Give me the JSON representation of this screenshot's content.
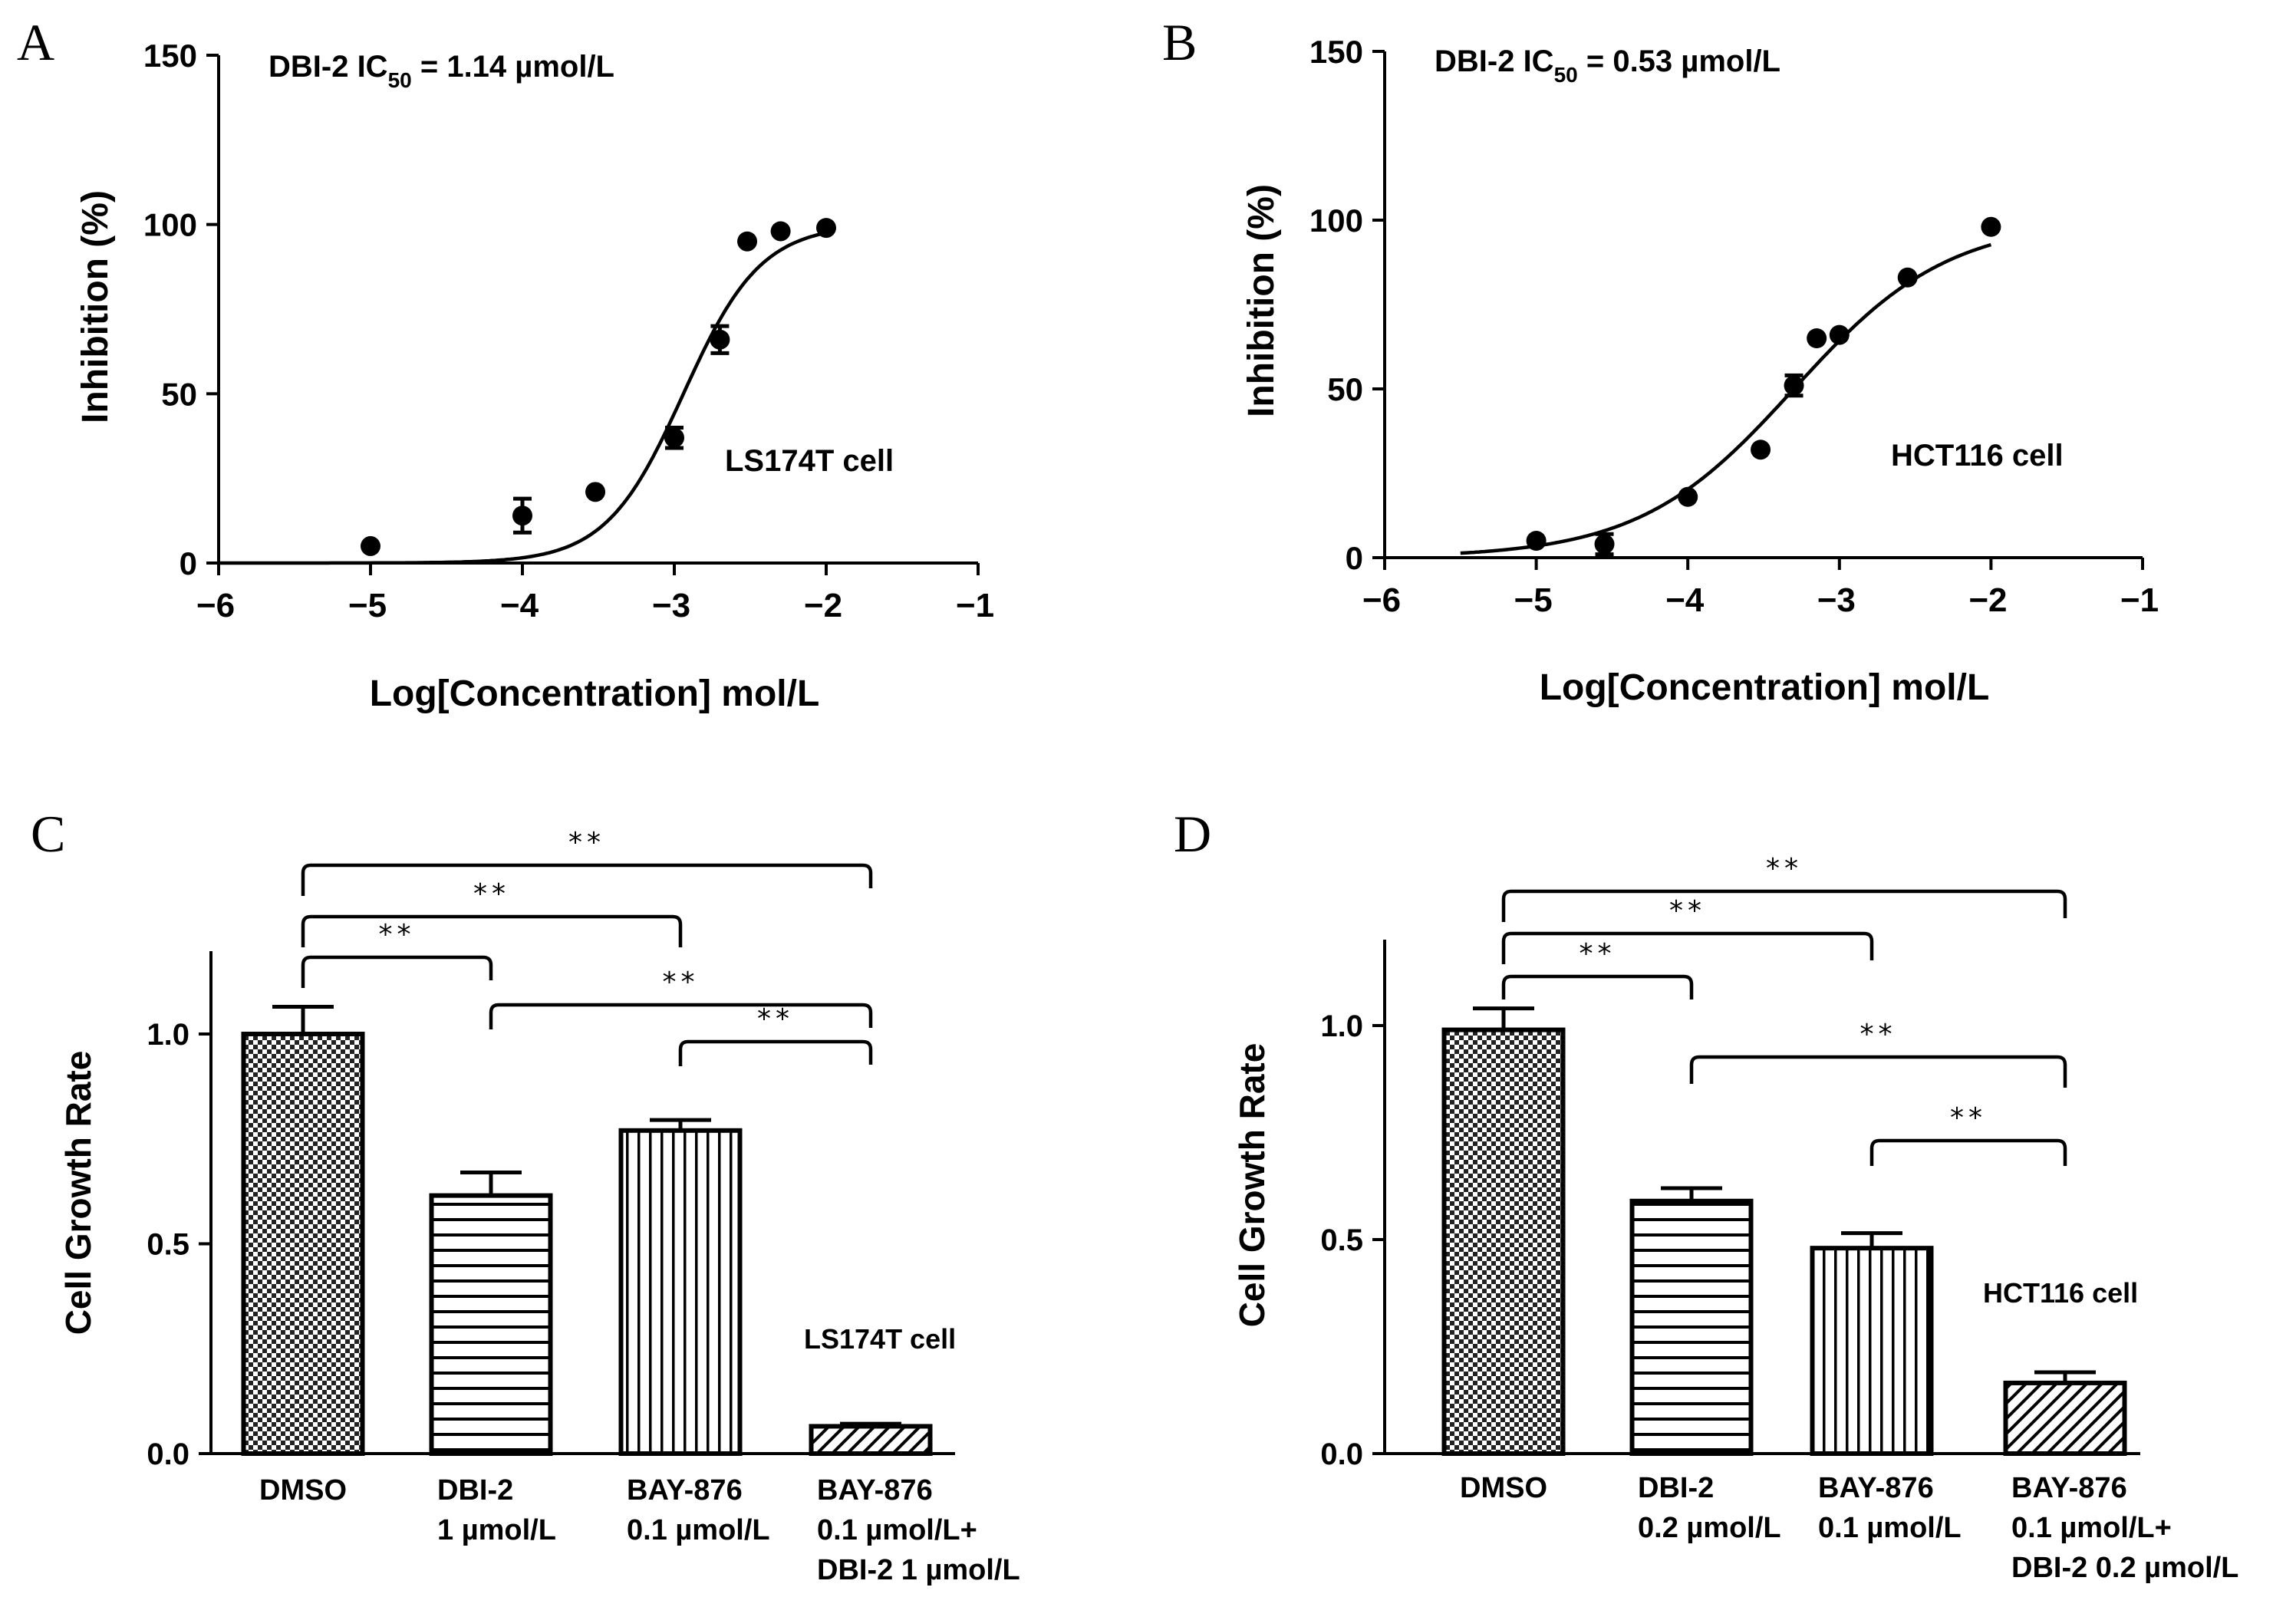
{
  "chart_data": [
    {
      "panel": "A",
      "type": "scatter",
      "title": "DBI-2 IC50 = 1.14 µmol/L",
      "title_main": "DBI-2 IC",
      "title_sub": "50",
      "title_rest": " = 1.14 µmol/L",
      "annotation": "LS174T cell",
      "xlabel": "Log[Concentration] mol/L",
      "ylabel": "Inhibition (%)",
      "xlim": [
        -6,
        -1
      ],
      "ylim": [
        0,
        150
      ],
      "xticks": [
        -6,
        -5,
        -4,
        -3,
        -2,
        -1
      ],
      "xtick_labels": [
        "−6",
        "−5",
        "−4",
        "−3",
        "−2",
        "−1"
      ],
      "yticks": [
        0,
        50,
        100,
        150
      ],
      "ytick_labels": [
        "0",
        "50",
        "100",
        "150"
      ],
      "points": [
        {
          "x": -5.0,
          "y": 5,
          "err": 0
        },
        {
          "x": -4.0,
          "y": 14,
          "err": 5
        },
        {
          "x": -3.52,
          "y": 21,
          "err": 0
        },
        {
          "x": -3.0,
          "y": 37,
          "err": 3
        },
        {
          "x": -2.7,
          "y": 66,
          "err": 4
        },
        {
          "x": -2.52,
          "y": 95,
          "err": 0
        },
        {
          "x": -2.3,
          "y": 98,
          "err": 0
        },
        {
          "x": -2.0,
          "y": 99,
          "err": 0
        }
      ],
      "fit": {
        "bottom": 0,
        "top": 100,
        "logIC50": -2.94,
        "hill": 1.7,
        "x_range": [
          -6,
          -2
        ]
      }
    },
    {
      "panel": "B",
      "type": "scatter",
      "title": "DBI-2 IC50 = 0.53 µmol/L",
      "title_main": "DBI-2 IC",
      "title_sub": "50",
      "title_rest": " = 0.53 µmol/L",
      "annotation": "HCT116 cell",
      "xlabel": "Log[Concentration] mol/L",
      "ylabel": "Inhibition (%)",
      "xlim": [
        -6,
        -1
      ],
      "ylim": [
        0,
        150
      ],
      "xticks": [
        -6,
        -5,
        -4,
        -3,
        -2,
        -1
      ],
      "xtick_labels": [
        "−6",
        "−5",
        "−4",
        "−3",
        "−2",
        "−1"
      ],
      "yticks": [
        0,
        50,
        100,
        150
      ],
      "ytick_labels": [
        "0",
        "50",
        "100",
        "150"
      ],
      "points": [
        {
          "x": -5.0,
          "y": 5,
          "err": 0
        },
        {
          "x": -4.55,
          "y": 4,
          "err": 3
        },
        {
          "x": -4.0,
          "y": 18,
          "err": 0
        },
        {
          "x": -3.52,
          "y": 32,
          "err": 0
        },
        {
          "x": -3.3,
          "y": 51,
          "err": 3
        },
        {
          "x": -3.15,
          "y": 65,
          "err": 0
        },
        {
          "x": -3.0,
          "y": 66,
          "err": 0
        },
        {
          "x": -2.55,
          "y": 83,
          "err": 0
        },
        {
          "x": -2.0,
          "y": 98,
          "err": 0
        }
      ],
      "fit": {
        "bottom": 0,
        "top": 100,
        "logIC50": -3.3,
        "hill": 0.85,
        "x_range": [
          -5.5,
          -2
        ]
      }
    },
    {
      "panel": "C",
      "type": "bar",
      "ylabel": "Cell Growth Rate",
      "annotation": "LS174T cell",
      "ylim": [
        0,
        1.2
      ],
      "yticks": [
        0,
        0.5,
        1.0
      ],
      "ytick_labels": [
        "0.0",
        "0.5",
        "1.0"
      ],
      "categories": [
        [
          "DMSO"
        ],
        [
          "DBI-2",
          "1 µmol/L"
        ],
        [
          "BAY-876",
          "0.1 µmol/L"
        ],
        [
          "BAY-876",
          "0.1 µmol/L+",
          "DBI-2 1 µmol/L"
        ]
      ],
      "values": [
        1.0,
        0.615,
        0.77,
        0.065
      ],
      "errors": [
        0.065,
        0.055,
        0.025,
        0.006
      ],
      "patterns": [
        "checker",
        "horizontal",
        "vertical",
        "diagonal"
      ],
      "significance": [
        {
          "from": 0,
          "to": 1,
          "label": "**"
        },
        {
          "from": 0,
          "to": 2,
          "label": "**"
        },
        {
          "from": 0,
          "to": 3,
          "label": "**"
        },
        {
          "from": 1,
          "to": 3,
          "label": "**"
        },
        {
          "from": 2,
          "to": 3,
          "label": "**"
        }
      ]
    },
    {
      "panel": "D",
      "type": "bar",
      "ylabel": "Cell Growth Rate",
      "annotation": "HCT116 cell",
      "ylim": [
        0,
        1.2
      ],
      "yticks": [
        0,
        0.5,
        1.0
      ],
      "ytick_labels": [
        "0.0",
        "0.5",
        "1.0"
      ],
      "categories": [
        [
          "DMSO"
        ],
        [
          "DBI-2",
          "0.2 µmol/L"
        ],
        [
          "BAY-876",
          "0.1 µmol/L"
        ],
        [
          "BAY-876",
          "0.1 µmol/L+",
          "DBI-2 0.2 µmol/L"
        ]
      ],
      "values": [
        0.99,
        0.59,
        0.48,
        0.165
      ],
      "errors": [
        0.05,
        0.03,
        0.035,
        0.025
      ],
      "patterns": [
        "checker",
        "horizontal",
        "vertical",
        "diagonal"
      ],
      "significance": [
        {
          "from": 0,
          "to": 1,
          "label": "**"
        },
        {
          "from": 0,
          "to": 2,
          "label": "**"
        },
        {
          "from": 0,
          "to": 3,
          "label": "**"
        },
        {
          "from": 1,
          "to": 3,
          "label": "**"
        },
        {
          "from": 2,
          "to": 3,
          "label": "**"
        }
      ]
    }
  ]
}
